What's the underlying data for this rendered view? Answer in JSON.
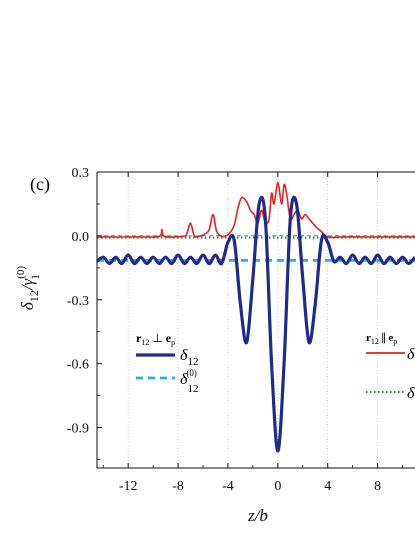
{
  "chart_data": {
    "type": "line",
    "panel_label": "(c)",
    "xlabel": "z/b",
    "ylabel_main": "δ",
    "ylabel_main_sub": "12",
    "ylabel_denom": "γ",
    "ylabel_denom_sup": "(0)",
    "ylabel_denom_sub": "1",
    "xlim": [
      -14.5,
      11
    ],
    "ylim": [
      -1.09,
      0.3
    ],
    "x_ticks": [
      -12,
      -8,
      -4,
      0,
      4,
      8
    ],
    "x_tick_labels": [
      "-12",
      "-8",
      "-4",
      "0",
      "4",
      "8"
    ],
    "y_ticks": [
      0.3,
      0.0,
      -0.3,
      -0.6,
      -0.9
    ],
    "y_tick_labels": [
      "0.3",
      "0.0",
      "-0.3",
      "-0.6",
      "-0.9"
    ],
    "grid": "vertical dotted",
    "legend_left": {
      "header": "r",
      "header_sub": "12",
      "header_rel": "⊥",
      "header_vec": "e",
      "header_vec_sub": "p",
      "entries": [
        {
          "symbol": "δ",
          "sub": "12",
          "sup": ""
        },
        {
          "symbol": "δ",
          "sub": "12",
          "sup": "(0)"
        }
      ]
    },
    "legend_right": {
      "header": "r",
      "header_sub": "12",
      "header_rel": "∥",
      "header_vec": "e",
      "header_vec_sub": "p",
      "entries": [
        {
          "symbol": "δ"
        },
        {
          "symbol": "δ"
        }
      ]
    },
    "colors": {
      "perp": "#1f2a8c",
      "perp0": "#22b3e6",
      "par": "#e8231f",
      "par0": "#1a9a3a"
    },
    "series": [
      {
        "key": "perp",
        "style": "solid-thick",
        "x": [
          -14.5,
          -14,
          -13.5,
          -13,
          -12.5,
          -12,
          -11.5,
          -11,
          -10.5,
          -10,
          -9.5,
          -9,
          -8.5,
          -8,
          -7.5,
          -7,
          -6.5,
          -6,
          -5.5,
          -5,
          -4.5,
          -4,
          -3.5,
          -3,
          -2.5,
          -2,
          -1.5,
          -1,
          -0.5,
          0,
          0.5,
          1,
          1.5,
          2,
          2.5,
          3,
          3.5,
          4,
          4.5,
          5,
          5.5,
          6,
          6.5,
          7,
          7.5,
          8,
          8.5,
          9,
          9.5,
          10,
          10.5,
          11
        ],
        "y": [
          -0.12,
          -0.1,
          -0.13,
          -0.1,
          -0.13,
          -0.09,
          -0.13,
          -0.1,
          -0.13,
          -0.1,
          -0.13,
          -0.1,
          -0.13,
          -0.09,
          -0.13,
          -0.1,
          -0.13,
          -0.09,
          -0.13,
          -0.09,
          -0.13,
          -0.03,
          -0.02,
          -0.32,
          -0.5,
          -0.2,
          0.15,
          0.08,
          -0.6,
          -1.01,
          -0.6,
          0.08,
          0.15,
          -0.2,
          -0.5,
          -0.32,
          -0.02,
          -0.03,
          -0.12,
          -0.1,
          -0.13,
          -0.09,
          -0.13,
          -0.1,
          -0.13,
          -0.09,
          -0.13,
          -0.1,
          -0.13,
          -0.1,
          -0.13,
          -0.1
        ]
      },
      {
        "key": "perp0",
        "style": "dashed",
        "x": [
          -14.5,
          11
        ],
        "y": [
          -0.115,
          -0.115
        ]
      },
      {
        "key": "par",
        "style": "solid-thin",
        "x": [
          -14.5,
          -11,
          -9.5,
          -9.3,
          -9.1,
          -7.6,
          -7.3,
          -7.0,
          -6.7,
          -6.3,
          -5.8,
          -5.5,
          -5.2,
          -4.9,
          -4.5,
          -4.2,
          -3.9,
          -3.5,
          -3.2,
          -2.9,
          -2.5,
          -2.2,
          -1.9,
          -1.6,
          -1.3,
          -1,
          -0.7,
          -0.5,
          -0.3,
          0,
          0.3,
          0.5,
          0.7,
          1,
          1.3,
          1.6,
          1.9,
          2.2,
          2.5,
          2.8,
          3.1,
          3.5,
          4,
          5,
          6,
          8,
          11
        ],
        "y": [
          -0.005,
          -0.005,
          -0.002,
          0.03,
          -0.002,
          -0.002,
          0.01,
          0.06,
          0.0,
          -0.002,
          0.01,
          0.03,
          0.1,
          0.02,
          -0.002,
          0.0,
          0.01,
          0.05,
          0.13,
          0.18,
          0.16,
          0.12,
          0.1,
          0.06,
          0.12,
          0.06,
          0.08,
          0.2,
          0.15,
          0.25,
          0.15,
          0.24,
          0.2,
          0.08,
          0.1,
          0.12,
          0.08,
          0.1,
          0.08,
          0.06,
          0.04,
          0.02,
          -0.005,
          -0.005,
          -0.005,
          -0.005,
          -0.005
        ]
      },
      {
        "key": "par0",
        "style": "dotted",
        "x": [
          -14.5,
          11
        ],
        "y": [
          -0.008,
          -0.008
        ]
      }
    ]
  }
}
